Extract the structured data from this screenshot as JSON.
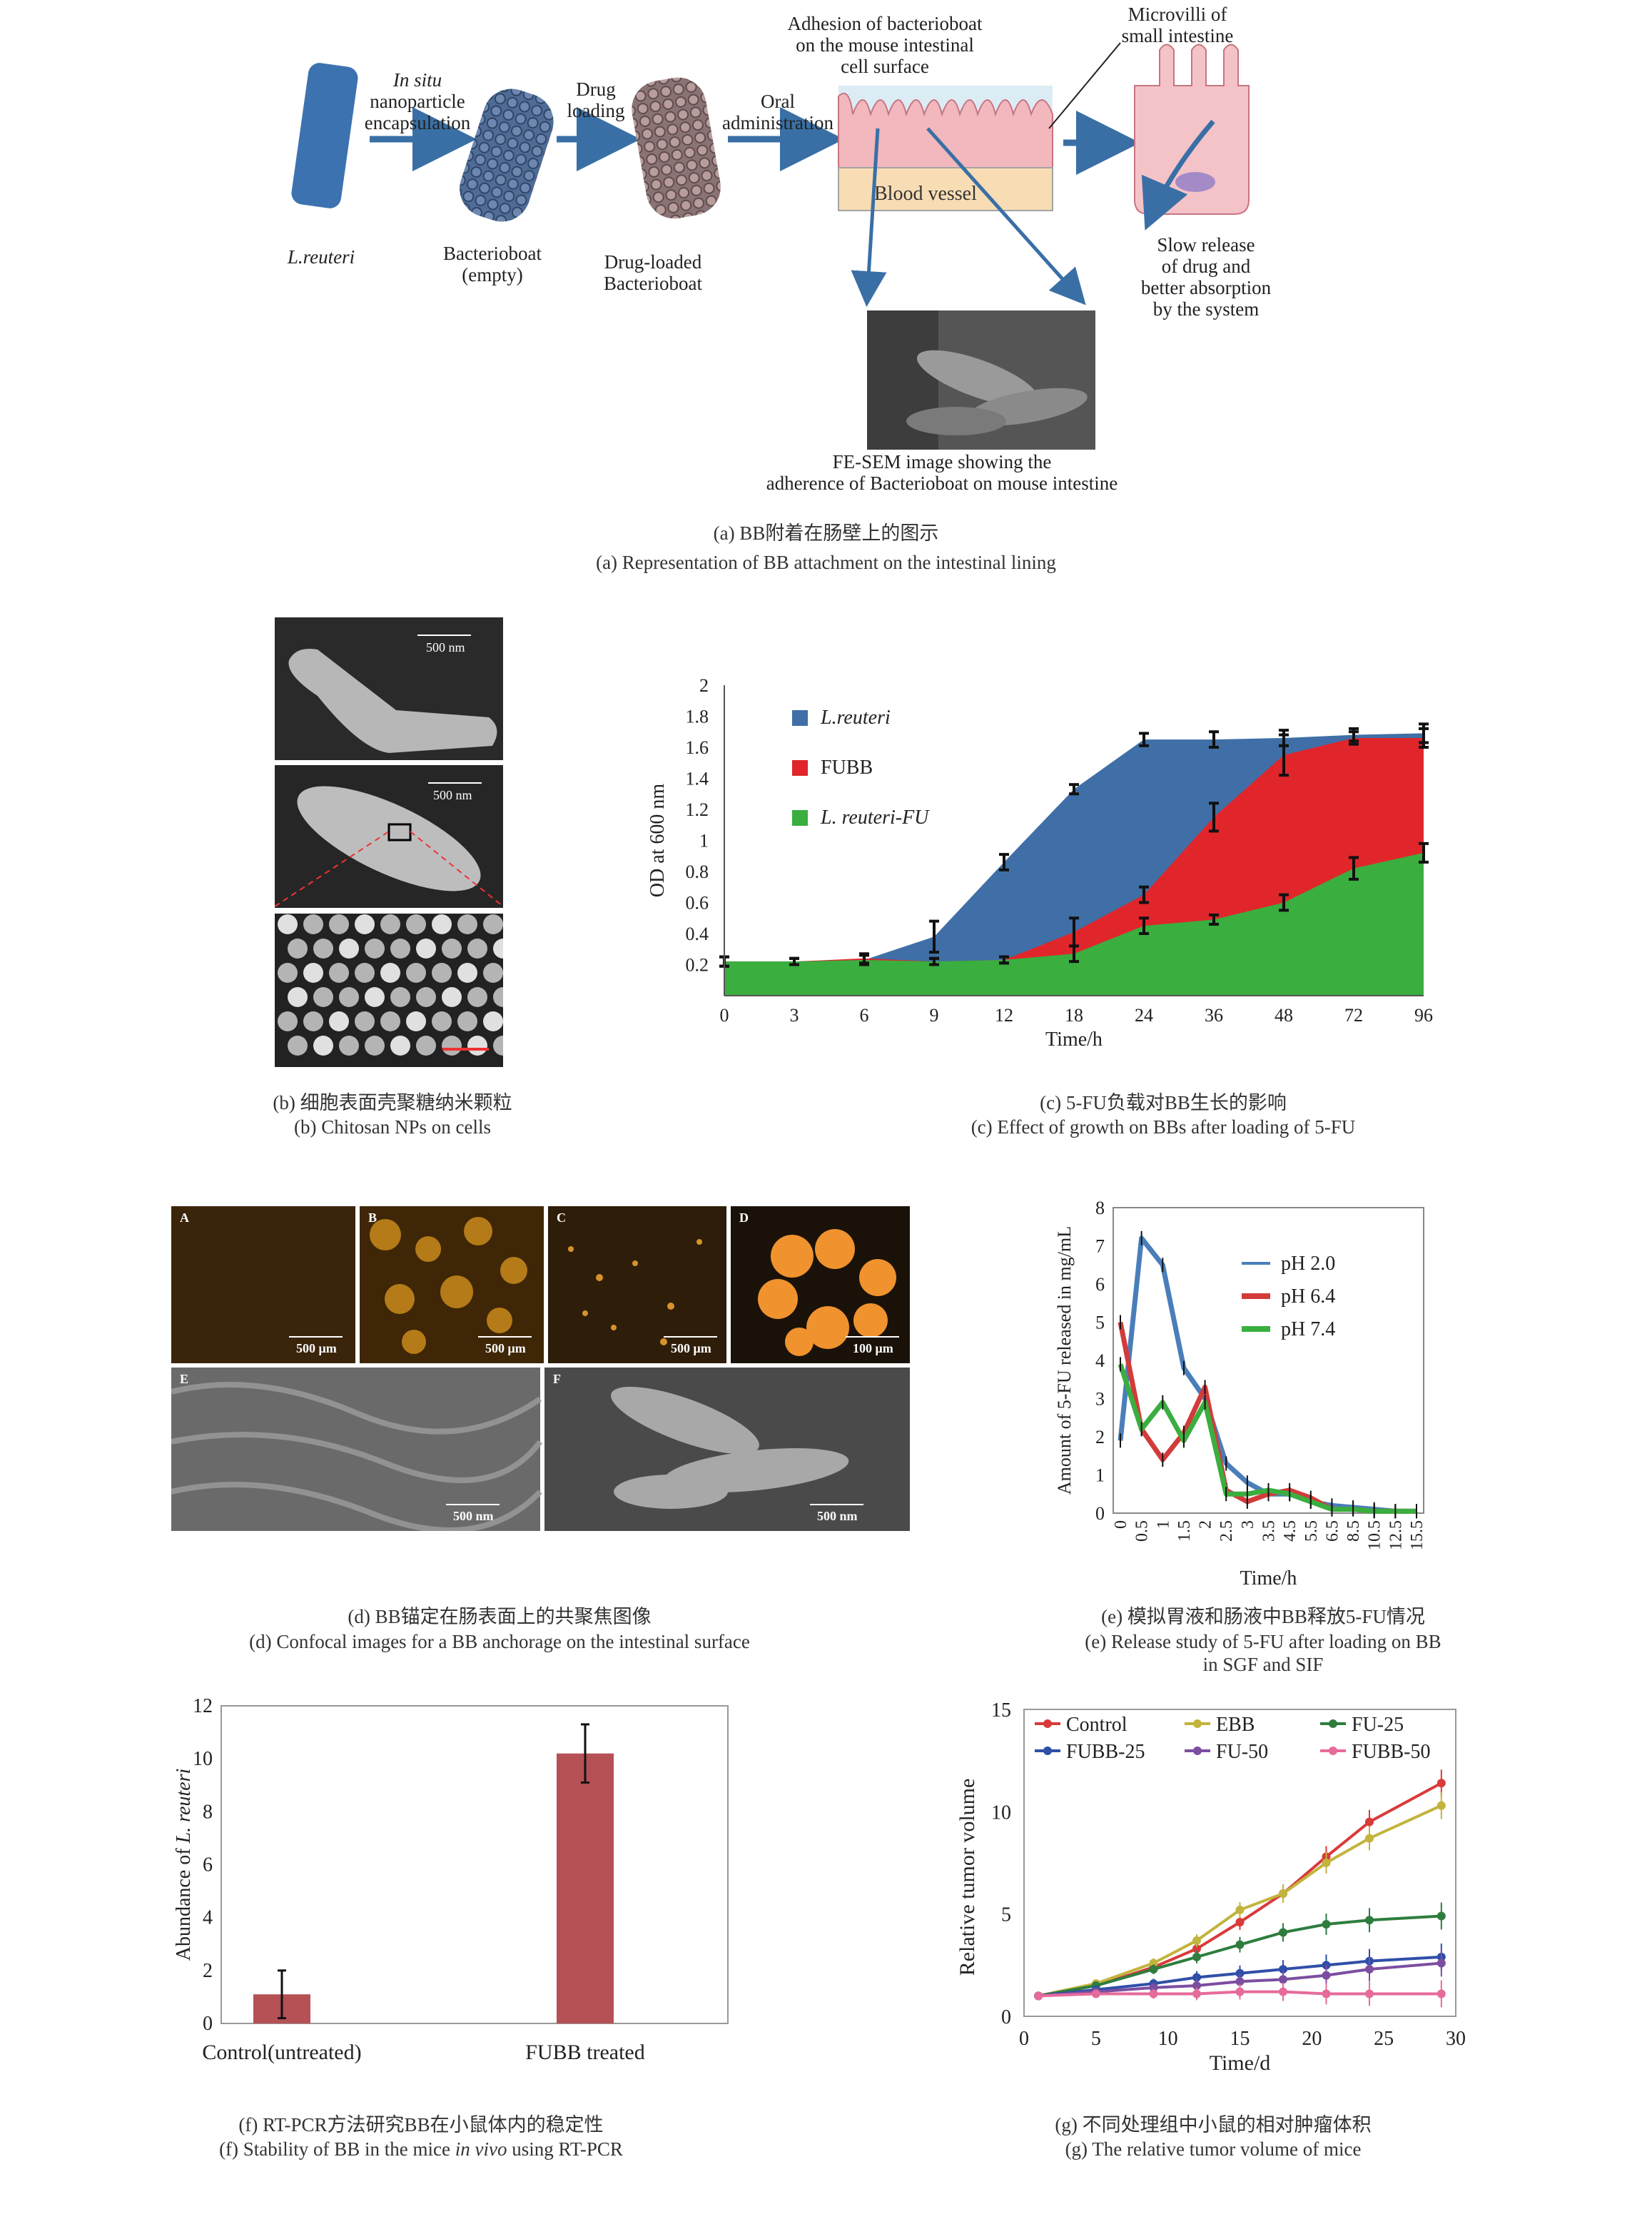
{
  "panel_a": {
    "reuteri_label": "L.reuteri",
    "step1": [
      "In situ",
      "nanoparticle",
      "encapsulation"
    ],
    "empty_label": [
      "Bacterioboat",
      "(empty)"
    ],
    "step2": [
      "Drug",
      "loading"
    ],
    "loaded_label": [
      "Drug-loaded",
      "Bacterioboat"
    ],
    "step3": [
      "Oral",
      "administration"
    ],
    "adhesion_label": [
      "Adhesion of bacterioboat",
      "on the mouse intestinal",
      "cell surface"
    ],
    "blood_vessel": "Blood vessel",
    "microvilli_label": [
      "Microvilli of",
      "small intestine"
    ],
    "release_label": [
      "Slow release",
      "of drug and",
      "better absorption",
      "by the system"
    ],
    "sem_label": [
      "FE-SEM image showing the",
      "adherence of Bacterioboat on mouse intestine"
    ],
    "caption_cn": "(a) BB附着在肠壁上的图示",
    "caption_en": "(a) Representation of BB attachment on the intestinal lining"
  },
  "panel_b": {
    "scale1": "500 nm",
    "scale2": "500 nm",
    "caption_cn": "(b) 细胞表面壳聚糖纳米颗粒",
    "caption_en": "(b) Chitosan NPs on cells"
  },
  "panel_c": {
    "caption_cn": "(c) 5-FU负载对BB生长的影响",
    "caption_en": "(c) Effect of growth on BBs after loading of 5-FU"
  },
  "panel_d": {
    "tiles": [
      {
        "letter": "A",
        "scale": "500 μm"
      },
      {
        "letter": "B",
        "scale": "500 μm"
      },
      {
        "letter": "C",
        "scale": "500 μm"
      },
      {
        "letter": "D",
        "scale": "100 μm"
      },
      {
        "letter": "E",
        "scale": "500 nm"
      },
      {
        "letter": "F",
        "scale": "500 nm"
      }
    ],
    "caption_cn": "(d) BB锚定在肠表面上的共聚焦图像",
    "caption_en": "(d) Confocal images for a BB anchorage on the intestinal surface"
  },
  "panel_e": {
    "caption_cn": "(e) 模拟胃液和肠液中BB释放5-FU情况",
    "caption_en1": "(e) Release study of 5-FU after loading on BB",
    "caption_en2": "in SGF and SIF"
  },
  "panel_f": {
    "caption_cn": "(f) RT-PCR方法研究BB在小鼠体内的稳定性",
    "caption_en_pre": "(f) Stability of BB in the mice ",
    "caption_en_em": "in vivo",
    "caption_en_post": " using RT-PCR"
  },
  "panel_g": {
    "caption_cn": "(g) 不同处理组中小鼠的相对肿瘤体积",
    "caption_en": "(g) The relative tumor volume of mice"
  },
  "chart_data": [
    {
      "id": "c",
      "type": "area",
      "xlabel": "Time/h",
      "ylabel": "OD at 600 nm",
      "categories": [
        "0",
        "3",
        "6",
        "9",
        "12",
        "18",
        "24",
        "36",
        "48",
        "72",
        "96"
      ],
      "yticks": [
        "0.2",
        "0.4",
        "0.6",
        "0.8",
        "1",
        "1.2",
        "1.4",
        "1.6",
        "1.8",
        "2"
      ],
      "ylim": [
        0,
        2
      ],
      "legend_position": "top-left",
      "series": [
        {
          "name": "L.reuteri",
          "color": "#3f6fa6",
          "values": [
            0.22,
            0.22,
            0.23,
            0.38,
            0.86,
            1.33,
            1.65,
            1.65,
            1.66,
            1.68,
            1.69
          ]
        },
        {
          "name": "FUBB",
          "color": "#e0262b",
          "values": [
            0.22,
            0.22,
            0.24,
            0.22,
            0.23,
            0.41,
            0.65,
            1.15,
            1.55,
            1.66,
            1.66
          ]
        },
        {
          "name": "L. reuteri-FU",
          "color": "#3aae3f",
          "values": [
            0.22,
            0.22,
            0.23,
            0.22,
            0.23,
            0.27,
            0.45,
            0.49,
            0.6,
            0.82,
            0.92
          ]
        }
      ],
      "errors": [
        [
          0.03,
          0.02,
          0.03,
          0.1,
          0.05,
          0.03,
          0.04,
          0.05,
          0.05,
          0.04,
          0.06
        ],
        [
          0.03,
          0.02,
          0.03,
          0.02,
          0.02,
          0.09,
          0.05,
          0.09,
          0.13,
          0.04,
          0.06
        ],
        [
          0.03,
          0.02,
          0.03,
          0.02,
          0.02,
          0.05,
          0.05,
          0.03,
          0.05,
          0.07,
          0.06
        ]
      ]
    },
    {
      "id": "e",
      "type": "line",
      "xlabel": "Time/h",
      "ylabel": "Amount of 5-FU released in mg/mL",
      "categories": [
        "0",
        "0.5",
        "1",
        "1.5",
        "2",
        "2.5",
        "3",
        "3.5",
        "4.5",
        "5.5",
        "6.5",
        "8.5",
        "10.5",
        "12.5",
        "15.5"
      ],
      "ylim": [
        0,
        8
      ],
      "yticks": [
        "0",
        "1",
        "2",
        "3",
        "4",
        "5",
        "6",
        "7",
        "8"
      ],
      "legend_position": "top-right",
      "series": [
        {
          "name": "pH 2.0",
          "color": "#4a7ebb",
          "values": [
            1.9,
            7.2,
            6.5,
            3.8,
            3.0,
            1.3,
            0.8,
            0.5,
            0.5,
            0.3,
            0.2,
            0.15,
            0.1,
            0.05,
            0.05
          ]
        },
        {
          "name": "pH 6.4",
          "color": "#d23b3a",
          "values": [
            5.0,
            2.2,
            1.4,
            2.1,
            3.3,
            0.6,
            0.3,
            0.5,
            0.6,
            0.4,
            0.1,
            0.1,
            0.05,
            0.05,
            0.05
          ]
        },
        {
          "name": "pH 7.4",
          "color": "#3aae3f",
          "values": [
            3.9,
            2.2,
            2.9,
            1.9,
            2.9,
            0.5,
            0.5,
            0.6,
            0.5,
            0.3,
            0.1,
            0.1,
            0.05,
            0.05,
            0.05
          ]
        }
      ]
    },
    {
      "id": "f",
      "type": "bar",
      "ylabel_pre": "Abundance of ",
      "ylabel_em": "L. reuteri",
      "categories": [
        "Control(untreated)",
        "FUBB treated"
      ],
      "values": [
        1.1,
        10.2
      ],
      "errors": [
        0.9,
        1.1
      ],
      "ylim": [
        0,
        12
      ],
      "yticks": [
        "0",
        "2",
        "4",
        "6",
        "8",
        "10",
        "12"
      ],
      "color": "#b55055"
    },
    {
      "id": "g",
      "type": "line",
      "xlabel": "Time/d",
      "ylabel": "Relative tumor volume",
      "x": [
        1,
        5,
        9,
        12,
        15,
        18,
        21,
        24,
        29
      ],
      "xticks": [
        "0",
        "5",
        "10",
        "15",
        "20",
        "25",
        "30"
      ],
      "yticks": [
        "0",
        "5",
        "10",
        "15"
      ],
      "xlim": [
        0,
        30
      ],
      "ylim": [
        0,
        15
      ],
      "legend_position": "top",
      "series": [
        {
          "name": "Control",
          "color": "#d93a3a",
          "values": [
            1.0,
            1.5,
            2.4,
            3.3,
            4.6,
            6.0,
            7.8,
            9.5,
            11.4
          ]
        },
        {
          "name": "EBB",
          "color": "#c2b43c",
          "values": [
            1.0,
            1.6,
            2.6,
            3.7,
            5.2,
            6.0,
            7.5,
            8.7,
            10.3
          ]
        },
        {
          "name": "FU-25",
          "color": "#2e7d3e",
          "values": [
            1.0,
            1.5,
            2.3,
            2.9,
            3.5,
            4.1,
            4.5,
            4.7,
            4.9
          ]
        },
        {
          "name": "FUBB-25",
          "color": "#2f4fa8",
          "values": [
            1.0,
            1.3,
            1.6,
            1.9,
            2.1,
            2.3,
            2.5,
            2.7,
            2.9
          ]
        },
        {
          "name": "FU-50",
          "color": "#7b4ea0",
          "values": [
            1.0,
            1.2,
            1.4,
            1.5,
            1.7,
            1.8,
            2.0,
            2.3,
            2.6
          ]
        },
        {
          "name": "FUBB-50",
          "color": "#e66a9a",
          "values": [
            1.0,
            1.1,
            1.1,
            1.1,
            1.2,
            1.2,
            1.1,
            1.1,
            1.1
          ]
        }
      ]
    }
  ]
}
